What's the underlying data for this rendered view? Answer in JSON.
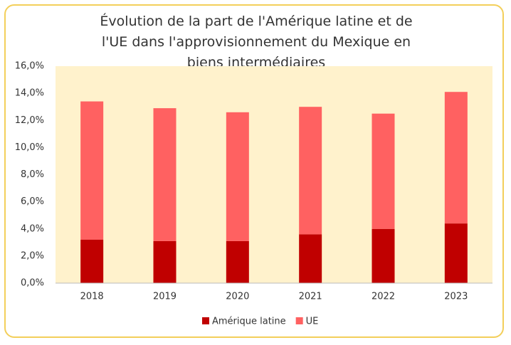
{
  "chart_data": {
    "type": "stacked_bar",
    "title": "Évolution de la part de l'Amérique latine et de l'UE dans l'approvisionnement du Mexique en biens intermédiaires",
    "categories": [
      "2018",
      "2019",
      "2020",
      "2021",
      "2022",
      "2023"
    ],
    "series": [
      {
        "name": "Amérique latine",
        "color": "#c00000",
        "values": [
          3.2,
          3.1,
          3.1,
          3.6,
          4.0,
          4.4
        ]
      },
      {
        "name": "UE",
        "color": "#ff6161",
        "values": [
          10.2,
          9.8,
          9.5,
          9.4,
          8.5,
          9.7
        ]
      }
    ],
    "ylim": [
      0,
      16
    ],
    "yticks": [
      {
        "value": 0,
        "label": "0,0%"
      },
      {
        "value": 2,
        "label": "2,0%"
      },
      {
        "value": 4,
        "label": "4,0%"
      },
      {
        "value": 6,
        "label": "6,0%"
      },
      {
        "value": 8,
        "label": "8,0%"
      },
      {
        "value": 10,
        "label": "10,0%"
      },
      {
        "value": 12,
        "label": "12,0%"
      },
      {
        "value": 14,
        "label": "14,0%"
      },
      {
        "value": 16,
        "label": "16,0%"
      }
    ],
    "grid": false,
    "legend": "bottom"
  }
}
